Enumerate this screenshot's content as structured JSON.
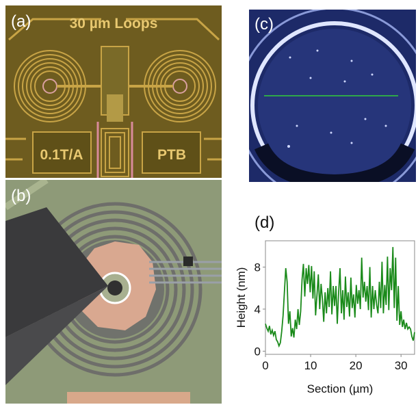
{
  "panels": {
    "a": {
      "label": "(a)",
      "chip_title": "30 µm Loops",
      "left_text": "0.1T/A",
      "right_text": "PTB"
    },
    "b": {
      "label": "(b)"
    },
    "c": {
      "label": "(c)"
    },
    "d": {
      "label": "(d)"
    }
  },
  "colors": {
    "chip_gold": "#c8a446",
    "chip_dark": "#6b5a1e",
    "afm_blue": "#24337a",
    "profile_line": "#2ea84a",
    "curve_green": "#1a8a1a"
  },
  "chart_data": {
    "type": "line",
    "xlabel": "Section (µm)",
    "ylabel": "Height (nm)",
    "xlim": [
      0,
      33
    ],
    "ylim": [
      -0.3,
      10.5
    ],
    "xticks": [
      0,
      10,
      20,
      30
    ],
    "yticks": [
      0,
      4,
      8
    ],
    "grid": false,
    "series": [
      {
        "values_x": [
          0,
          0.3,
          0.6,
          0.9,
          1.2,
          1.5,
          1.8,
          2.1,
          2.4,
          2.7,
          3.0,
          3.3,
          3.6,
          3.9,
          4.2,
          4.5,
          4.8,
          5.1,
          5.4,
          5.7,
          6.0,
          6.3,
          6.6,
          6.9,
          7.2,
          7.5,
          7.8,
          8.1,
          8.4,
          8.7,
          9.0,
          9.3,
          9.6,
          9.9,
          10.2,
          10.5,
          10.8,
          11.1,
          11.4,
          11.7,
          12.0,
          12.3,
          12.6,
          12.9,
          13.2,
          13.5,
          13.8,
          14.1,
          14.4,
          14.7,
          15.0,
          15.3,
          15.6,
          15.9,
          16.2,
          16.5,
          16.8,
          17.1,
          17.4,
          17.7,
          18.0,
          18.3,
          18.6,
          18.9,
          19.2,
          19.5,
          19.8,
          20.1,
          20.4,
          20.7,
          21.0,
          21.3,
          21.6,
          21.9,
          22.2,
          22.5,
          22.8,
          23.1,
          23.4,
          23.7,
          24.0,
          24.3,
          24.6,
          24.9,
          25.2,
          25.5,
          25.8,
          26.1,
          26.4,
          26.7,
          27.0,
          27.3,
          27.6,
          27.9,
          28.2,
          28.5,
          28.8,
          29.1,
          29.4,
          29.7,
          30.0,
          30.3,
          30.6,
          30.9,
          31.2,
          31.5,
          31.8,
          32.1,
          32.4,
          32.7,
          33.0
        ],
        "values_y": [
          2.6,
          2.2,
          1.9,
          2.4,
          1.6,
          2.0,
          1.5,
          1.9,
          1.1,
          0.9,
          0.5,
          0.8,
          1.9,
          3.4,
          5.6,
          7.9,
          6.6,
          2.6,
          3.8,
          1.4,
          2.2,
          1.3,
          3.0,
          2.1,
          4.0,
          2.5,
          3.8,
          6.8,
          8.3,
          5.2,
          7.9,
          6.4,
          8.2,
          5.6,
          8.1,
          5.0,
          7.6,
          3.4,
          5.3,
          7.3,
          4.0,
          6.4,
          5.0,
          2.8,
          5.6,
          3.6,
          6.0,
          4.2,
          7.6,
          3.5,
          6.2,
          4.3,
          6.2,
          2.6,
          5.6,
          7.9,
          3.6,
          5.8,
          3.0,
          7.1,
          4.2,
          5.6,
          3.3,
          7.0,
          4.1,
          5.4,
          3.2,
          6.3,
          4.5,
          5.8,
          4.0,
          8.9,
          5.1,
          6.6,
          4.7,
          6.2,
          3.9,
          8.0,
          3.2,
          6.2,
          4.0,
          5.8,
          4.4,
          3.6,
          6.6,
          4.1,
          8.5,
          3.6,
          6.3,
          4.4,
          9.0,
          3.9,
          7.9,
          5.8,
          9.9,
          4.1,
          8.9,
          2.9,
          6.2,
          2.5,
          3.8,
          2.3,
          3.0,
          2.1,
          2.7,
          2.1,
          2.3,
          2.1,
          1.4,
          1.0,
          1.8
        ]
      }
    ]
  }
}
